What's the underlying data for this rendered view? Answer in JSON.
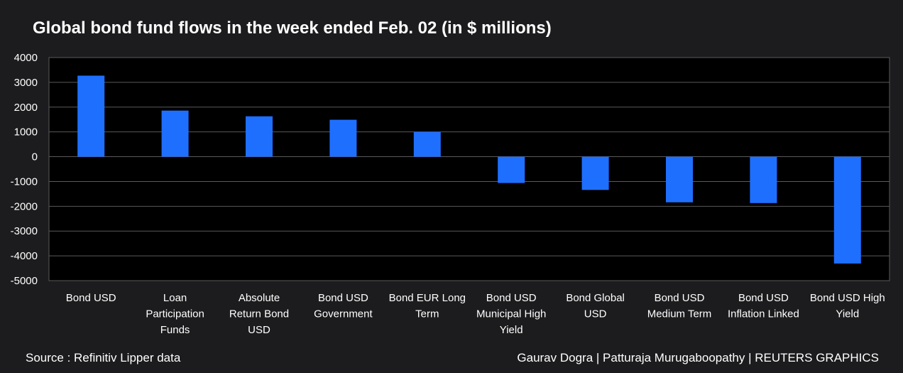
{
  "chart_data": {
    "type": "bar",
    "title": "Global bond fund flows in the week ended Feb. 02 (in $ millions)",
    "categories": [
      [
        "Bond USD"
      ],
      [
        "Loan",
        "Participation",
        "Funds"
      ],
      [
        "Absolute",
        "Return Bond",
        "USD"
      ],
      [
        "Bond USD",
        "Government"
      ],
      [
        "Bond EUR Long",
        "Term"
      ],
      [
        "Bond USD",
        "Municipal High",
        "Yield"
      ],
      [
        "Bond Global",
        "USD"
      ],
      [
        "Bond USD",
        "Medium Term"
      ],
      [
        "Bond USD",
        "Inflation Linked"
      ],
      [
        "Bond USD High",
        "Yield"
      ]
    ],
    "values": [
      3270,
      1860,
      1630,
      1490,
      1000,
      -1060,
      -1340,
      -1840,
      -1870,
      -4310
    ],
    "ylim": [
      -5000,
      4000
    ],
    "yticks": [
      "4000",
      "3000",
      "2000",
      "1000",
      "0",
      "-1000",
      "-2000",
      "-3000",
      "-4000",
      "-5000"
    ],
    "ytick_values": [
      4000,
      3000,
      2000,
      1000,
      0,
      -1000,
      -2000,
      -3000,
      -4000,
      -5000
    ],
    "xlabel": "",
    "ylabel": "",
    "grid": true,
    "bar_color": "#1f6fff",
    "plot_background": "#000000",
    "grid_color": "#5a5a5a"
  },
  "footer": {
    "source": "Source : Refinitiv Lipper data",
    "credit": "Gaurav Dogra | Patturaja Murugaboopathy | REUTERS GRAPHICS"
  }
}
